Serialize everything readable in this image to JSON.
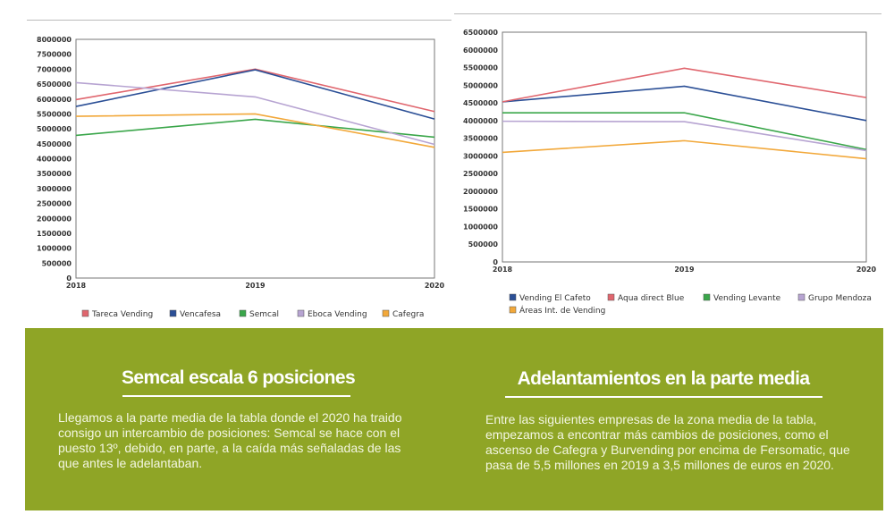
{
  "colors": {
    "panel": "#8fa526",
    "red": "#e0666e",
    "blue": "#2b4f96",
    "green": "#3aa64a",
    "lilac": "#b7a4d2",
    "orange": "#f2a83a"
  },
  "chart_data": [
    {
      "type": "line",
      "categories": [
        "2018",
        "2019",
        "2020"
      ],
      "ylim": [
        0,
        8000000
      ],
      "yticks": [
        "0",
        "500000",
        "1000000",
        "1500000",
        "2000000",
        "2500000",
        "3000000",
        "3500000",
        "4000000",
        "4500000",
        "5000000",
        "5500000",
        "6000000",
        "6500000",
        "7000000",
        "7500000",
        "8000000"
      ],
      "grid": false,
      "legend": "bottom",
      "series": [
        {
          "name": "Tareca Vending",
          "color": "#e0666e",
          "values": [
            5980000,
            7000000,
            5580000
          ]
        },
        {
          "name": "Vencafesa",
          "color": "#2b4f96",
          "values": [
            5750000,
            6980000,
            5330000
          ]
        },
        {
          "name": "Semcal",
          "color": "#3aa64a",
          "values": [
            4780000,
            5320000,
            4720000
          ]
        },
        {
          "name": "Eboca Vending",
          "color": "#b7a4d2",
          "values": [
            6550000,
            6070000,
            4480000
          ]
        },
        {
          "name": "Cafegra",
          "color": "#f2a83a",
          "values": [
            5420000,
            5500000,
            4380000
          ]
        }
      ]
    },
    {
      "type": "line",
      "categories": [
        "2018",
        "2019",
        "2020"
      ],
      "ylim": [
        0,
        6500000
      ],
      "yticks": [
        "0",
        "500000",
        "1000000",
        "1500000",
        "2000000",
        "2500000",
        "3000000",
        "3500000",
        "4000000",
        "4500000",
        "5000000",
        "5500000",
        "6000000",
        "6500000"
      ],
      "grid": false,
      "legend": "bottom",
      "series": [
        {
          "name": "Vending El Cafeto",
          "color": "#2b4f96",
          "values": [
            4530000,
            4970000,
            4000000
          ]
        },
        {
          "name": "Aqua direct Blue",
          "color": "#e0666e",
          "values": [
            4530000,
            5480000,
            4650000
          ]
        },
        {
          "name": "Vending Levante",
          "color": "#3aa64a",
          "values": [
            4220000,
            4220000,
            3180000
          ]
        },
        {
          "name": "Grupo Mendoza",
          "color": "#b7a4d2",
          "values": [
            3980000,
            3970000,
            3150000
          ]
        },
        {
          "name": "Áreas Int. de Vending",
          "color": "#f2a83a",
          "values": [
            3100000,
            3430000,
            2920000
          ]
        }
      ]
    }
  ],
  "articles": [
    {
      "title": "Semcal escala 6 posiciones",
      "body": "Llegamos a la parte media de la tabla donde el 2020 ha traido consigo un intercambio de posiciones: Semcal se hace con el puesto 13º, debido, en parte, a la caída más señaladas de las que antes le adelantaban."
    },
    {
      "title": "Adelantamientos en la parte media",
      "body": "Entre las siguientes empresas de la zona media de la tabla, empezamos a encontrar más cambios de posiciones, como el ascenso de Cafegra y Burvending por encima de Fersomatic, que pasa de 5,5 millones en 2019 a 3,5 millones de euros en 2020."
    }
  ]
}
